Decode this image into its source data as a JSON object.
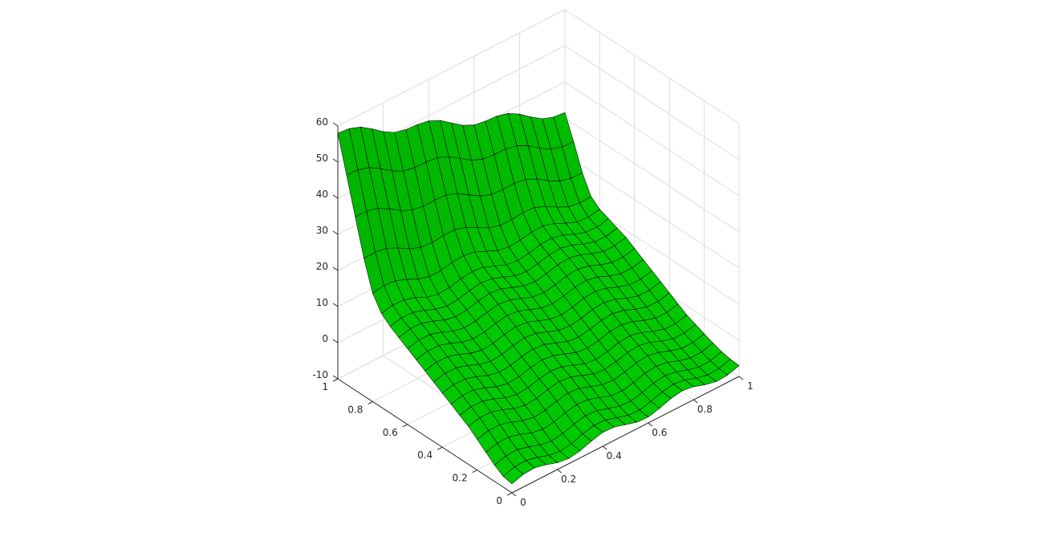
{
  "chart_data": {
    "type": "surface",
    "title": "",
    "xlabel": "",
    "ylabel": "",
    "zlabel": "",
    "xlim": [
      0,
      1
    ],
    "ylim": [
      0,
      1
    ],
    "zlim": [
      -10,
      60
    ],
    "grid": true,
    "colors": {
      "face": "#00dd00",
      "edge": "#000000",
      "grid": "#dcdcdc",
      "axis": "#262626"
    },
    "x_ticks": [
      {
        "value": 0,
        "label": "0"
      },
      {
        "value": 0.2,
        "label": "0.2"
      },
      {
        "value": 0.4,
        "label": "0.4"
      },
      {
        "value": 0.6,
        "label": "0.6"
      },
      {
        "value": 0.8,
        "label": "0.8"
      },
      {
        "value": 1,
        "label": "1"
      }
    ],
    "y_ticks": [
      {
        "value": 0,
        "label": "0"
      },
      {
        "value": 0.2,
        "label": "0.2"
      },
      {
        "value": 0.4,
        "label": "0.4"
      },
      {
        "value": 0.6,
        "label": "0.6"
      },
      {
        "value": 0.8,
        "label": "0.8"
      },
      {
        "value": 1,
        "label": "1"
      }
    ],
    "z_ticks": [
      {
        "value": -10,
        "label": "-10"
      },
      {
        "value": 0,
        "label": "0"
      },
      {
        "value": 10,
        "label": "10"
      },
      {
        "value": 20,
        "label": "20"
      },
      {
        "value": 30,
        "label": "30"
      },
      {
        "value": 40,
        "label": "40"
      },
      {
        "value": 50,
        "label": "50"
      },
      {
        "value": 60,
        "label": "60"
      }
    ],
    "surface": {
      "x": [
        0,
        0.05,
        0.1,
        0.15,
        0.2,
        0.25,
        0.3,
        0.35,
        0.4,
        0.45,
        0.5,
        0.55,
        0.6,
        0.65,
        0.7,
        0.75,
        0.8,
        0.85,
        0.9,
        0.95,
        1
      ],
      "y": [
        0,
        0.05,
        0.1,
        0.15,
        0.2,
        0.25,
        0.3,
        0.35,
        0.4,
        0.45,
        0.5,
        0.55,
        0.6,
        0.65,
        0.7,
        0.75,
        0.8,
        0.85,
        0.9,
        0.95,
        1
      ],
      "z_along_y_at_x0": [
        -7.5,
        -7,
        -5.5,
        -3.5,
        -1.5,
        0.5,
        2,
        3.5,
        5,
        6.5,
        8,
        9.5,
        11,
        12.5,
        14,
        16,
        20,
        28,
        38,
        48,
        58
      ],
      "z_along_y_at_x1": [
        -7,
        -6.8,
        -6.3,
        -5.5,
        -4.5,
        -3.5,
        -2.5,
        -1,
        0.5,
        2,
        3.5,
        5,
        6.5,
        8,
        9,
        10,
        11,
        13,
        18,
        25,
        31.5
      ],
      "ripple_amplitude": 1.2,
      "ripple_cycles_along_x": 3
    }
  }
}
